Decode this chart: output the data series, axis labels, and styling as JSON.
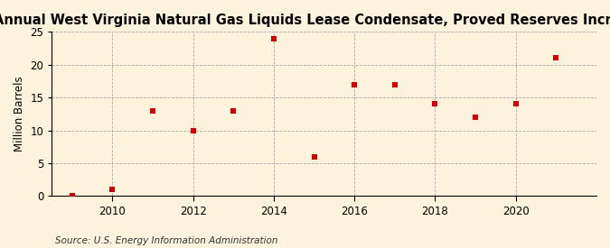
{
  "title": "Annual West Virginia Natural Gas Liquids Lease Condensate, Proved Reserves Increases",
  "ylabel": "Million Barrels",
  "source": "Source: U.S. Energy Information Administration",
  "background_color": "#fdf3dc",
  "plot_background_color": "#fdf3dc",
  "marker_color": "#cc0000",
  "marker": "s",
  "marker_size": 5,
  "years": [
    2009,
    2010,
    2011,
    2012,
    2013,
    2014,
    2015,
    2016,
    2017,
    2018,
    2019,
    2020,
    2021
  ],
  "values": [
    0,
    1,
    13,
    10,
    13,
    24,
    6,
    17,
    17,
    14,
    12,
    14,
    21
  ],
  "xlim": [
    2008.5,
    2022.0
  ],
  "ylim": [
    0,
    25
  ],
  "yticks": [
    0,
    5,
    10,
    15,
    20,
    25
  ],
  "xticks": [
    2010,
    2012,
    2014,
    2016,
    2018,
    2020
  ],
  "title_fontsize": 10.5,
  "label_fontsize": 8.5,
  "tick_fontsize": 8.5,
  "source_fontsize": 7.5,
  "grid_color": "#aaaaaa",
  "spine_color": "#000000"
}
